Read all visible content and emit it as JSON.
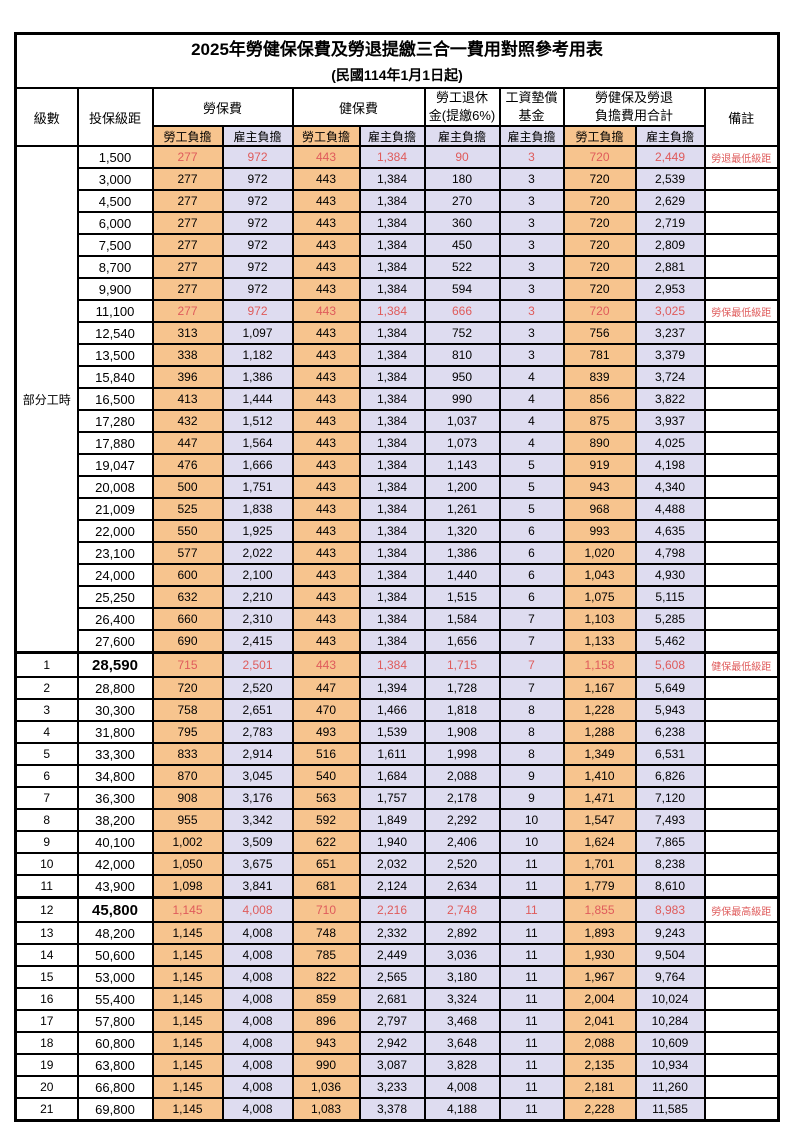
{
  "title": "2025年勞健保保費及勞退提繳三合一費用對照參考用表",
  "subtitle": "(民國114年1月1日起)",
  "header": {
    "level": "級數",
    "bracket": "投保級距",
    "labor_insurance": "勞保費",
    "health_insurance": "健保費",
    "pension_line1": "勞工退休",
    "pension_line2": "金(提繳6%)",
    "wage_fund_line1": "工資墊償",
    "wage_fund_line2": "基金",
    "total_line1": "勞健保及勞退",
    "total_line2": "負擔費用合計",
    "remark": "備註",
    "employee": "勞工負擔",
    "employer": "雇主負擔"
  },
  "part_time_label": "部分工時",
  "part_time_row_count": 23,
  "colors": {
    "employee-bg": "#F7C48E",
    "employer-bg": "#DEDCF0",
    "highlight-red": "#DF5B5B",
    "grid": "#000000"
  },
  "value_column_types": [
    "emp",
    "er",
    "emp",
    "er",
    "er",
    "er",
    "emp",
    "er"
  ],
  "rows": [
    {
      "level": "",
      "bracket": "1,500",
      "values": [
        "277",
        "972",
        "443",
        "1,384",
        "90",
        "3",
        "720",
        "2,449"
      ],
      "remark": "勞退最低級距",
      "highlight": true,
      "emphasis": false
    },
    {
      "level": "",
      "bracket": "3,000",
      "values": [
        "277",
        "972",
        "443",
        "1,384",
        "180",
        "3",
        "720",
        "2,539"
      ],
      "remark": "",
      "highlight": false,
      "emphasis": false
    },
    {
      "level": "",
      "bracket": "4,500",
      "values": [
        "277",
        "972",
        "443",
        "1,384",
        "270",
        "3",
        "720",
        "2,629"
      ],
      "remark": "",
      "highlight": false,
      "emphasis": false
    },
    {
      "level": "",
      "bracket": "6,000",
      "values": [
        "277",
        "972",
        "443",
        "1,384",
        "360",
        "3",
        "720",
        "2,719"
      ],
      "remark": "",
      "highlight": false,
      "emphasis": false
    },
    {
      "level": "",
      "bracket": "7,500",
      "values": [
        "277",
        "972",
        "443",
        "1,384",
        "450",
        "3",
        "720",
        "2,809"
      ],
      "remark": "",
      "highlight": false,
      "emphasis": false
    },
    {
      "level": "",
      "bracket": "8,700",
      "values": [
        "277",
        "972",
        "443",
        "1,384",
        "522",
        "3",
        "720",
        "2,881"
      ],
      "remark": "",
      "highlight": false,
      "emphasis": false
    },
    {
      "level": "",
      "bracket": "9,900",
      "values": [
        "277",
        "972",
        "443",
        "1,384",
        "594",
        "3",
        "720",
        "2,953"
      ],
      "remark": "",
      "highlight": false,
      "emphasis": false
    },
    {
      "level": "",
      "bracket": "11,100",
      "values": [
        "277",
        "972",
        "443",
        "1,384",
        "666",
        "3",
        "720",
        "3,025"
      ],
      "remark": "勞保最低級距",
      "highlight": true,
      "emphasis": false
    },
    {
      "level": "",
      "bracket": "12,540",
      "values": [
        "313",
        "1,097",
        "443",
        "1,384",
        "752",
        "3",
        "756",
        "3,237"
      ],
      "remark": "",
      "highlight": false,
      "emphasis": false
    },
    {
      "level": "",
      "bracket": "13,500",
      "values": [
        "338",
        "1,182",
        "443",
        "1,384",
        "810",
        "3",
        "781",
        "3,379"
      ],
      "remark": "",
      "highlight": false,
      "emphasis": false
    },
    {
      "level": "",
      "bracket": "15,840",
      "values": [
        "396",
        "1,386",
        "443",
        "1,384",
        "950",
        "4",
        "839",
        "3,724"
      ],
      "remark": "",
      "highlight": false,
      "emphasis": false
    },
    {
      "level": "",
      "bracket": "16,500",
      "values": [
        "413",
        "1,444",
        "443",
        "1,384",
        "990",
        "4",
        "856",
        "3,822"
      ],
      "remark": "",
      "highlight": false,
      "emphasis": false
    },
    {
      "level": "",
      "bracket": "17,280",
      "values": [
        "432",
        "1,512",
        "443",
        "1,384",
        "1,037",
        "4",
        "875",
        "3,937"
      ],
      "remark": "",
      "highlight": false,
      "emphasis": false
    },
    {
      "level": "",
      "bracket": "17,880",
      "values": [
        "447",
        "1,564",
        "443",
        "1,384",
        "1,073",
        "4",
        "890",
        "4,025"
      ],
      "remark": "",
      "highlight": false,
      "emphasis": false
    },
    {
      "level": "",
      "bracket": "19,047",
      "values": [
        "476",
        "1,666",
        "443",
        "1,384",
        "1,143",
        "5",
        "919",
        "4,198"
      ],
      "remark": "",
      "highlight": false,
      "emphasis": false
    },
    {
      "level": "",
      "bracket": "20,008",
      "values": [
        "500",
        "1,751",
        "443",
        "1,384",
        "1,200",
        "5",
        "943",
        "4,340"
      ],
      "remark": "",
      "highlight": false,
      "emphasis": false
    },
    {
      "level": "",
      "bracket": "21,009",
      "values": [
        "525",
        "1,838",
        "443",
        "1,384",
        "1,261",
        "5",
        "968",
        "4,488"
      ],
      "remark": "",
      "highlight": false,
      "emphasis": false
    },
    {
      "level": "",
      "bracket": "22,000",
      "values": [
        "550",
        "1,925",
        "443",
        "1,384",
        "1,320",
        "6",
        "993",
        "4,635"
      ],
      "remark": "",
      "highlight": false,
      "emphasis": false
    },
    {
      "level": "",
      "bracket": "23,100",
      "values": [
        "577",
        "2,022",
        "443",
        "1,384",
        "1,386",
        "6",
        "1,020",
        "4,798"
      ],
      "remark": "",
      "highlight": false,
      "emphasis": false
    },
    {
      "level": "",
      "bracket": "24,000",
      "values": [
        "600",
        "2,100",
        "443",
        "1,384",
        "1,440",
        "6",
        "1,043",
        "4,930"
      ],
      "remark": "",
      "highlight": false,
      "emphasis": false
    },
    {
      "level": "",
      "bracket": "25,250",
      "values": [
        "632",
        "2,210",
        "443",
        "1,384",
        "1,515",
        "6",
        "1,075",
        "5,115"
      ],
      "remark": "",
      "highlight": false,
      "emphasis": false
    },
    {
      "level": "",
      "bracket": "26,400",
      "values": [
        "660",
        "2,310",
        "443",
        "1,384",
        "1,584",
        "7",
        "1,103",
        "5,285"
      ],
      "remark": "",
      "highlight": false,
      "emphasis": false
    },
    {
      "level": "",
      "bracket": "27,600",
      "values": [
        "690",
        "2,415",
        "443",
        "1,384",
        "1,656",
        "7",
        "1,133",
        "5,462"
      ],
      "remark": "",
      "highlight": false,
      "emphasis": false
    },
    {
      "level": "1",
      "bracket": "28,590",
      "values": [
        "715",
        "2,501",
        "443",
        "1,384",
        "1,715",
        "7",
        "1,158",
        "5,608"
      ],
      "remark": "健保最低級距",
      "highlight": true,
      "emphasis": true
    },
    {
      "level": "2",
      "bracket": "28,800",
      "values": [
        "720",
        "2,520",
        "447",
        "1,394",
        "1,728",
        "7",
        "1,167",
        "5,649"
      ],
      "remark": "",
      "highlight": false,
      "emphasis": false
    },
    {
      "level": "3",
      "bracket": "30,300",
      "values": [
        "758",
        "2,651",
        "470",
        "1,466",
        "1,818",
        "8",
        "1,228",
        "5,943"
      ],
      "remark": "",
      "highlight": false,
      "emphasis": false
    },
    {
      "level": "4",
      "bracket": "31,800",
      "values": [
        "795",
        "2,783",
        "493",
        "1,539",
        "1,908",
        "8",
        "1,288",
        "6,238"
      ],
      "remark": "",
      "highlight": false,
      "emphasis": false
    },
    {
      "level": "5",
      "bracket": "33,300",
      "values": [
        "833",
        "2,914",
        "516",
        "1,611",
        "1,998",
        "8",
        "1,349",
        "6,531"
      ],
      "remark": "",
      "highlight": false,
      "emphasis": false
    },
    {
      "level": "6",
      "bracket": "34,800",
      "values": [
        "870",
        "3,045",
        "540",
        "1,684",
        "2,088",
        "9",
        "1,410",
        "6,826"
      ],
      "remark": "",
      "highlight": false,
      "emphasis": false
    },
    {
      "level": "7",
      "bracket": "36,300",
      "values": [
        "908",
        "3,176",
        "563",
        "1,757",
        "2,178",
        "9",
        "1,471",
        "7,120"
      ],
      "remark": "",
      "highlight": false,
      "emphasis": false
    },
    {
      "level": "8",
      "bracket": "38,200",
      "values": [
        "955",
        "3,342",
        "592",
        "1,849",
        "2,292",
        "10",
        "1,547",
        "7,493"
      ],
      "remark": "",
      "highlight": false,
      "emphasis": false
    },
    {
      "level": "9",
      "bracket": "40,100",
      "values": [
        "1,002",
        "3,509",
        "622",
        "1,940",
        "2,406",
        "10",
        "1,624",
        "7,865"
      ],
      "remark": "",
      "highlight": false,
      "emphasis": false
    },
    {
      "level": "10",
      "bracket": "42,000",
      "values": [
        "1,050",
        "3,675",
        "651",
        "2,032",
        "2,520",
        "11",
        "1,701",
        "8,238"
      ],
      "remark": "",
      "highlight": false,
      "emphasis": false
    },
    {
      "level": "11",
      "bracket": "43,900",
      "values": [
        "1,098",
        "3,841",
        "681",
        "2,124",
        "2,634",
        "11",
        "1,779",
        "8,610"
      ],
      "remark": "",
      "highlight": false,
      "emphasis": false
    },
    {
      "level": "12",
      "bracket": "45,800",
      "values": [
        "1,145",
        "4,008",
        "710",
        "2,216",
        "2,748",
        "11",
        "1,855",
        "8,983"
      ],
      "remark": "勞保最高級距",
      "highlight": true,
      "emphasis": true
    },
    {
      "level": "13",
      "bracket": "48,200",
      "values": [
        "1,145",
        "4,008",
        "748",
        "2,332",
        "2,892",
        "11",
        "1,893",
        "9,243"
      ],
      "remark": "",
      "highlight": false,
      "emphasis": false
    },
    {
      "level": "14",
      "bracket": "50,600",
      "values": [
        "1,145",
        "4,008",
        "785",
        "2,449",
        "3,036",
        "11",
        "1,930",
        "9,504"
      ],
      "remark": "",
      "highlight": false,
      "emphasis": false
    },
    {
      "level": "15",
      "bracket": "53,000",
      "values": [
        "1,145",
        "4,008",
        "822",
        "2,565",
        "3,180",
        "11",
        "1,967",
        "9,764"
      ],
      "remark": "",
      "highlight": false,
      "emphasis": false
    },
    {
      "level": "16",
      "bracket": "55,400",
      "values": [
        "1,145",
        "4,008",
        "859",
        "2,681",
        "3,324",
        "11",
        "2,004",
        "10,024"
      ],
      "remark": "",
      "highlight": false,
      "emphasis": false
    },
    {
      "level": "17",
      "bracket": "57,800",
      "values": [
        "1,145",
        "4,008",
        "896",
        "2,797",
        "3,468",
        "11",
        "2,041",
        "10,284"
      ],
      "remark": "",
      "highlight": false,
      "emphasis": false
    },
    {
      "level": "18",
      "bracket": "60,800",
      "values": [
        "1,145",
        "4,008",
        "943",
        "2,942",
        "3,648",
        "11",
        "2,088",
        "10,609"
      ],
      "remark": "",
      "highlight": false,
      "emphasis": false
    },
    {
      "level": "19",
      "bracket": "63,800",
      "values": [
        "1,145",
        "4,008",
        "990",
        "3,087",
        "3,828",
        "11",
        "2,135",
        "10,934"
      ],
      "remark": "",
      "highlight": false,
      "emphasis": false
    },
    {
      "level": "20",
      "bracket": "66,800",
      "values": [
        "1,145",
        "4,008",
        "1,036",
        "3,233",
        "4,008",
        "11",
        "2,181",
        "11,260"
      ],
      "remark": "",
      "highlight": false,
      "emphasis": false
    },
    {
      "level": "21",
      "bracket": "69,800",
      "values": [
        "1,145",
        "4,008",
        "1,083",
        "3,378",
        "4,188",
        "11",
        "2,228",
        "11,585"
      ],
      "remark": "",
      "highlight": false,
      "emphasis": false
    }
  ]
}
